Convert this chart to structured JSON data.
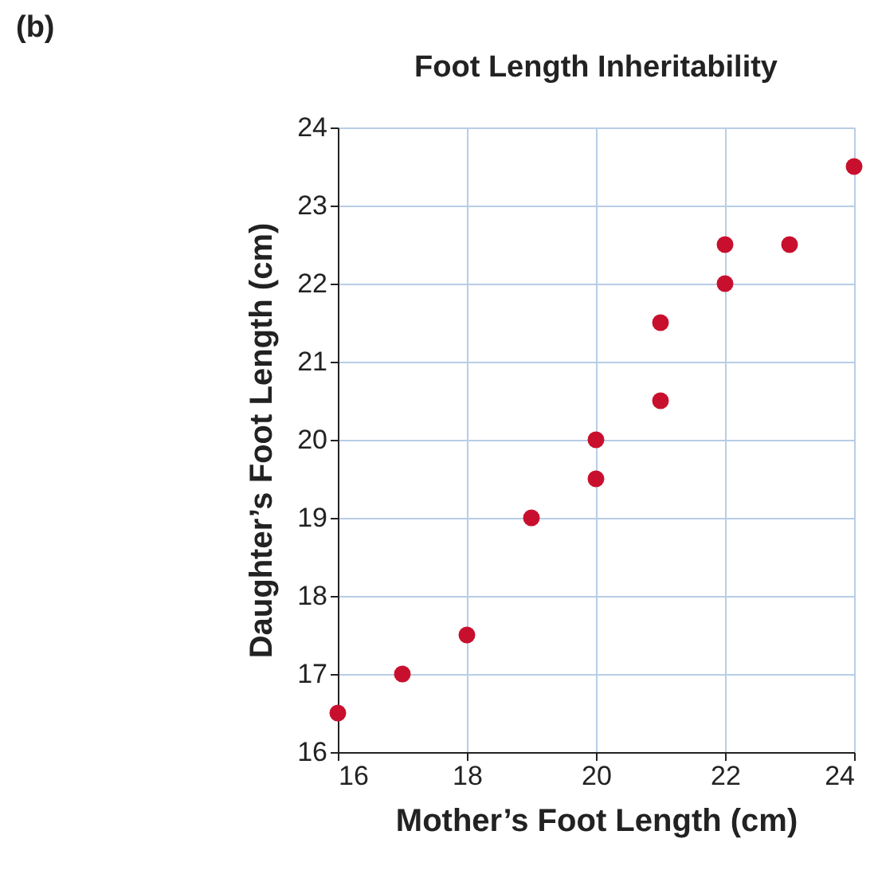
{
  "chart_data": {
    "type": "scatter",
    "title": "Foot Length Inheritability",
    "xlabel": "Mother’s Foot Length (cm)",
    "ylabel": "Daughter’s Foot Length (cm)",
    "annotations": [
      "(b)"
    ],
    "x": [
      16,
      17,
      18,
      19,
      20,
      20,
      21,
      21,
      22,
      22,
      23,
      24
    ],
    "series": [
      {
        "color": "#c8102e",
        "values": [
          16.5,
          17,
          17.5,
          19,
          20,
          19.5,
          21.5,
          20.5,
          22.5,
          22,
          22.5,
          23.5
        ]
      }
    ],
    "xlim": [
      16,
      24
    ],
    "xticks": [
      16,
      18,
      20,
      22,
      24
    ],
    "ylim": [
      16,
      24
    ],
    "yticks": [
      16,
      17,
      18,
      19,
      20,
      21,
      22,
      23,
      24
    ],
    "grid": true,
    "marker": "circle"
  }
}
